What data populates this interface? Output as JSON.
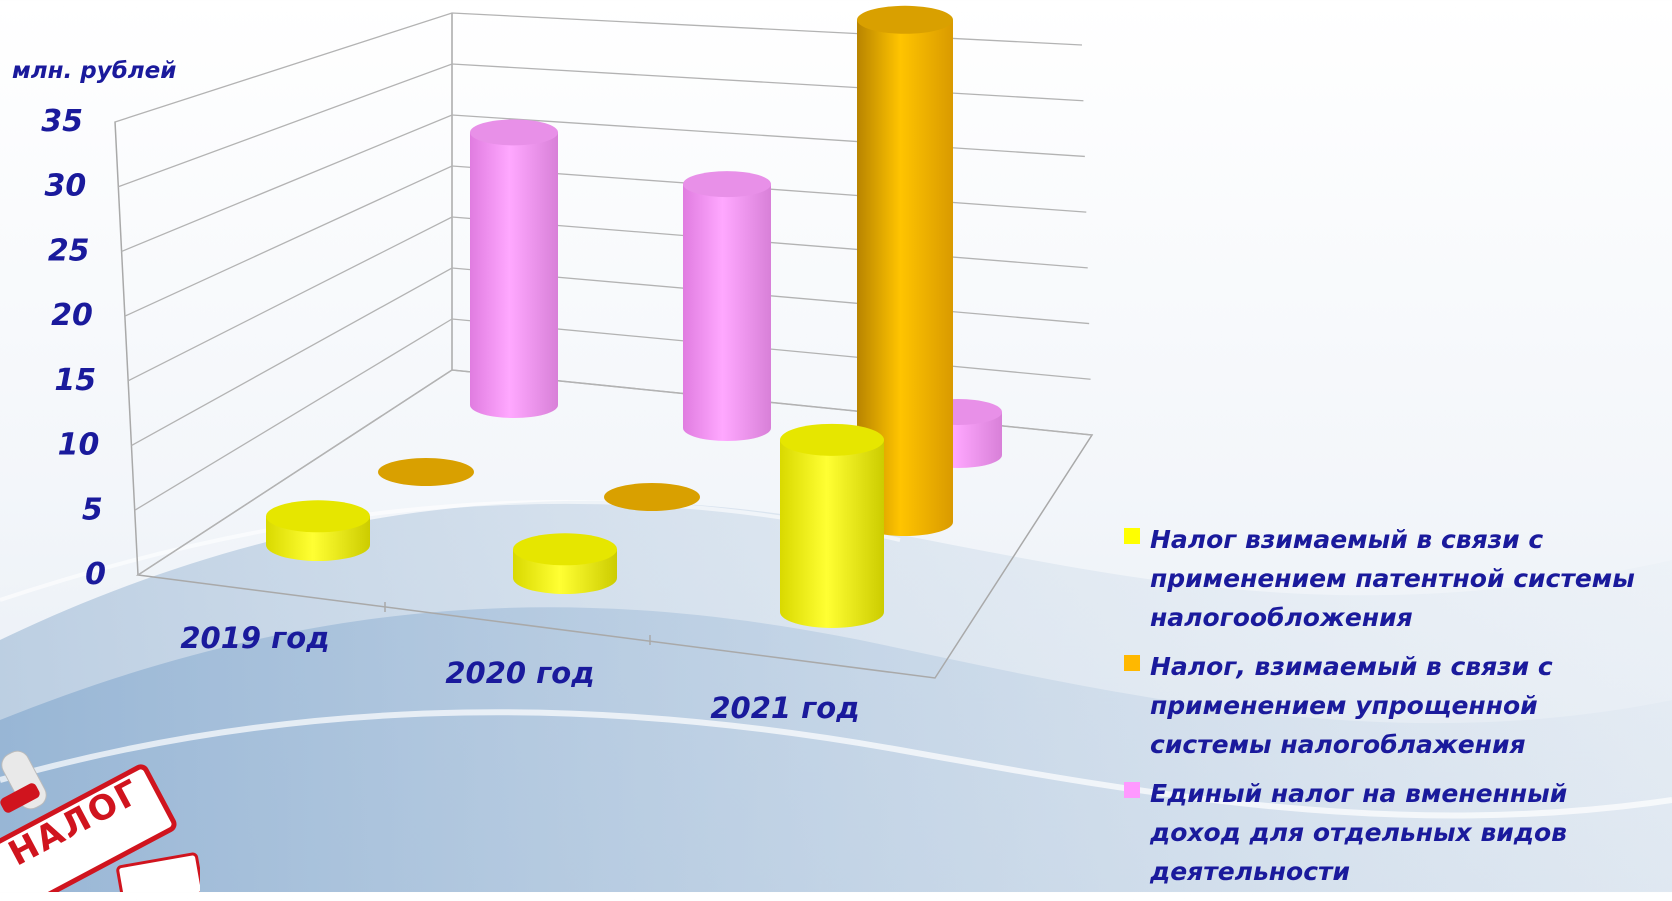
{
  "chart_data": {
    "type": "bar",
    "style": "3d-cylinder",
    "ylabel": "млн. рублей",
    "ylim": [
      0,
      35
    ],
    "yticks": [
      "0",
      "5",
      "10",
      "15",
      "20",
      "25",
      "30",
      "35"
    ],
    "categories": [
      "2019 год",
      "2020 год",
      "2021 год"
    ],
    "grid": true,
    "legend_position": "right",
    "series": [
      {
        "name": "Налог взимаемый в связи с применением патентной системы налогообложения",
        "color": "#ffff00",
        "values": [
          2.0,
          2.0,
          12.0
        ]
      },
      {
        "name": "Налог, взимаемый в связи с применением упрощенной системы налогоблажения",
        "color": "#ffb800",
        "values": [
          0.0,
          0.0,
          35.0
        ]
      },
      {
        "name": "Единый налог на вмененный доход для отдельных видов деятельности",
        "color": "#ff99ff",
        "values": [
          19.0,
          17.0,
          3.0
        ]
      }
    ]
  },
  "legend": {
    "items": [
      {
        "text": "Налог взимаемый в связи с применением патентной системы налогообложения",
        "color": "#ffff00"
      },
      {
        "text": "Налог, взимаемый в связи с применением упрощенной системы налогоблажения",
        "color": "#ffb800"
      },
      {
        "text": "Единый налог на вмененный доход для отдельных видов деятельности",
        "color": "#ff99ff"
      }
    ]
  },
  "stamp": {
    "word": "НАЛОГ"
  }
}
